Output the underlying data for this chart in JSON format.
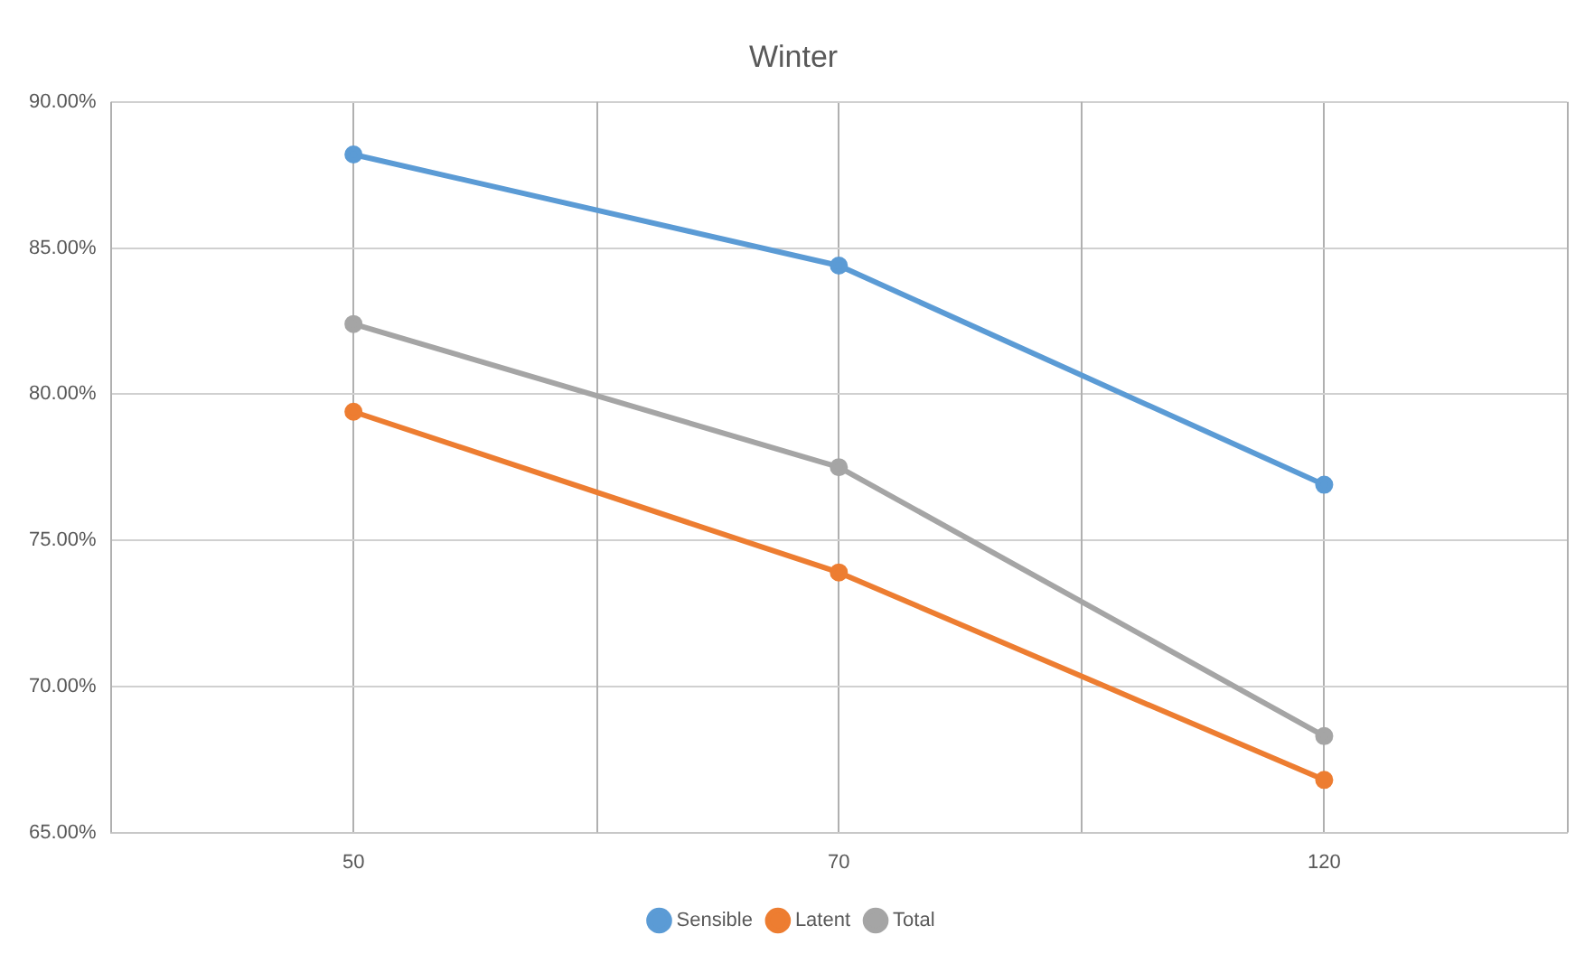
{
  "chart_data": {
    "type": "line",
    "title": "Winter",
    "categories": [
      "50",
      "70",
      "120"
    ],
    "series": [
      {
        "name": "Sensible",
        "color": "#5b9bd5",
        "values": [
          88.2,
          84.4,
          76.9
        ]
      },
      {
        "name": "Latent",
        "color": "#ed7d31",
        "values": [
          79.4,
          73.9,
          66.8
        ]
      },
      {
        "name": "Total",
        "color": "#a5a5a5",
        "values": [
          82.4,
          77.5,
          68.3
        ]
      }
    ],
    "ylim": [
      65,
      90
    ],
    "yticks": [
      {
        "value": 65,
        "label": "65.00%"
      },
      {
        "value": 70,
        "label": "70.00%"
      },
      {
        "value": 75,
        "label": "75.00%"
      },
      {
        "value": 80,
        "label": "80.00%"
      },
      {
        "value": 85,
        "label": "85.00%"
      },
      {
        "value": 90,
        "label": "90.00%"
      }
    ],
    "grid": true,
    "legend": "bottom",
    "marker": "circle",
    "line_style": "solid"
  }
}
